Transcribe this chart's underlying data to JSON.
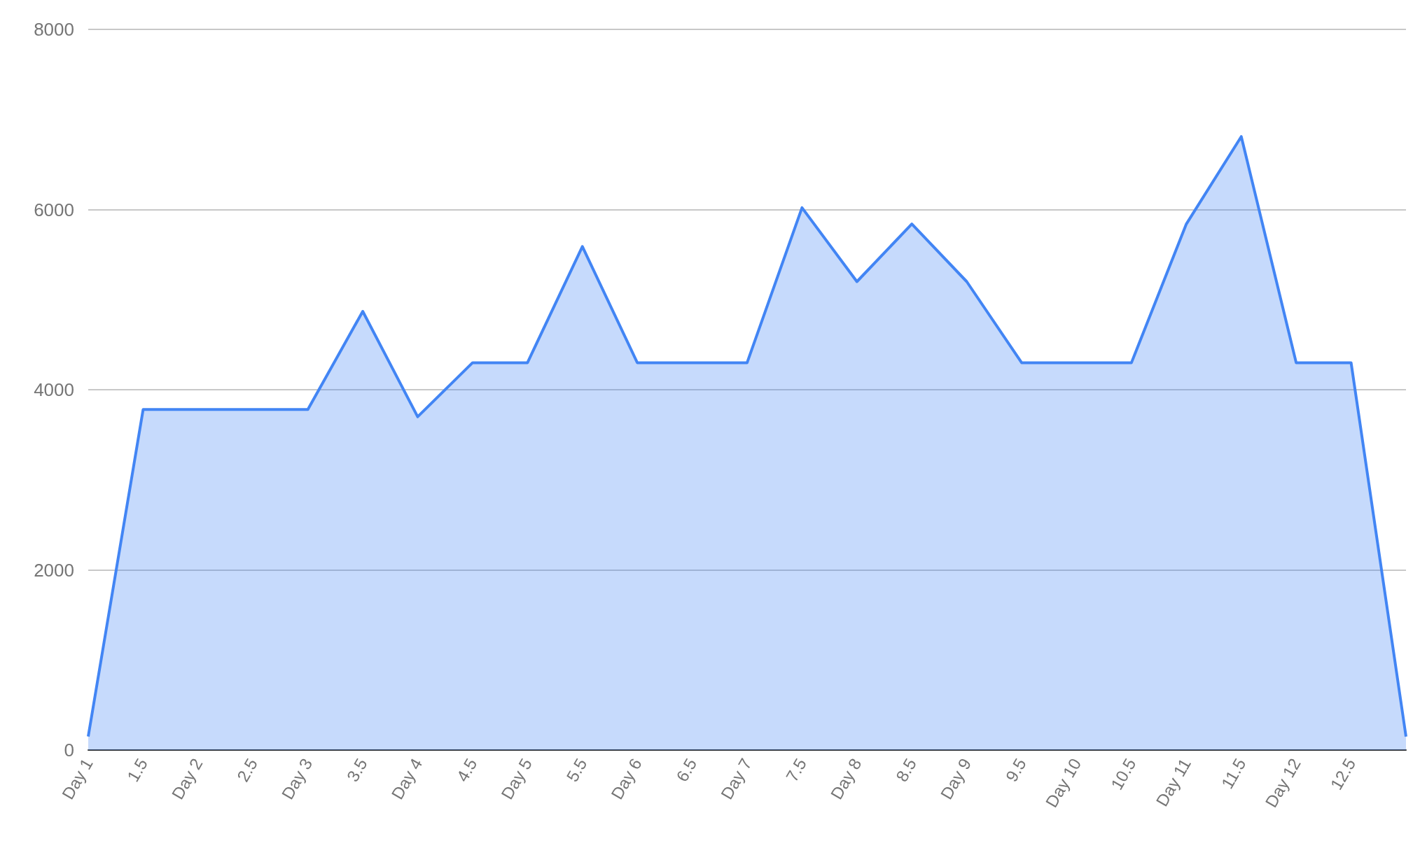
{
  "chart_data": {
    "type": "area",
    "categories": [
      "Day 1",
      "1.5",
      "Day 2",
      "2.5",
      "Day 3",
      "3.5",
      "Day 4",
      "4.5",
      "Day 5",
      "5.5",
      "Day 6",
      "6.5",
      "Day 7",
      "7.5",
      "Day 8",
      "8.5",
      "Day 9",
      "9.5",
      "Day 10",
      "10.5",
      "Day 11",
      "11.5",
      "Day 12",
      "12.5",
      null
    ],
    "series": [
      {
        "color": "#4285f4",
        "values": [
          150,
          3780,
          3780,
          3780,
          3780,
          4870,
          3700,
          4300,
          4300,
          5590,
          4300,
          4300,
          4300,
          6020,
          5200,
          5840,
          5200,
          4300,
          4300,
          4300,
          5840,
          6810,
          4300,
          4300,
          150
        ]
      }
    ],
    "ylim": [
      0,
      8000
    ],
    "yticks": [
      0,
      2000,
      4000,
      6000,
      8000
    ],
    "grid": "y",
    "marker": "none",
    "line_style": "solid"
  }
}
